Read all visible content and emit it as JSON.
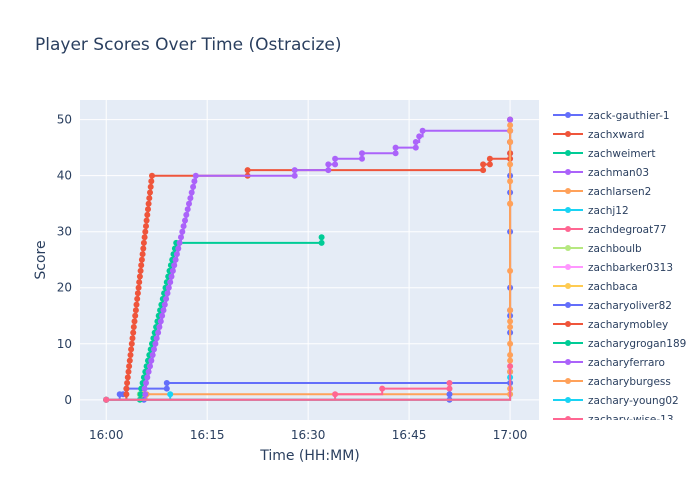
{
  "chart_data": {
    "type": "line",
    "title": "Player Scores Over Time (Ostracize)",
    "xlabel": "Time (HH:MM)",
    "ylabel": "Score",
    "x_tick_labels": [
      "16:00",
      "16:15",
      "16:30",
      "16:45",
      "17:00"
    ],
    "x_tick_minutes": [
      0,
      15,
      30,
      45,
      60
    ],
    "y_ticks": [
      0,
      10,
      20,
      30,
      40,
      50
    ],
    "xlim_minutes": [
      -3.9,
      64.3
    ],
    "ylim": [
      -3.6,
      53.5
    ],
    "grid": true,
    "legend_position": "right",
    "series": [
      {
        "name": "zack-gauthier-1",
        "color": "#636efa",
        "points": [
          [
            0,
            0
          ],
          [
            2,
            1
          ],
          [
            2.5,
            1
          ],
          [
            3,
            2
          ],
          [
            9,
            2
          ],
          [
            9,
            3
          ],
          [
            60,
            3
          ],
          [
            60,
            5
          ],
          [
            60,
            12
          ],
          [
            60,
            15
          ],
          [
            60,
            16
          ],
          [
            60,
            20
          ],
          [
            60,
            30
          ],
          [
            60,
            37
          ],
          [
            60,
            40
          ],
          [
            60,
            44
          ],
          [
            60,
            46
          ],
          [
            60,
            50
          ]
        ]
      },
      {
        "name": "zachxward",
        "color": "#ef553b",
        "points": [
          [
            0,
            0
          ],
          [
            3,
            2
          ],
          [
            3.1,
            3
          ],
          [
            3.2,
            4
          ],
          [
            3.3,
            5
          ],
          [
            3.4,
            6
          ],
          [
            3.5,
            7
          ],
          [
            3.6,
            8
          ],
          [
            3.7,
            9
          ],
          [
            3.8,
            10
          ],
          [
            3.9,
            11
          ],
          [
            4.0,
            12
          ],
          [
            4.1,
            13
          ],
          [
            4.2,
            14
          ],
          [
            4.3,
            15
          ],
          [
            4.4,
            16
          ],
          [
            4.5,
            17
          ],
          [
            4.6,
            18
          ],
          [
            4.7,
            19
          ],
          [
            4.8,
            20
          ],
          [
            4.9,
            21
          ],
          [
            5.0,
            22
          ],
          [
            5.1,
            23
          ],
          [
            5.2,
            24
          ],
          [
            5.3,
            25
          ],
          [
            5.4,
            26
          ],
          [
            5.5,
            27
          ],
          [
            5.6,
            28
          ],
          [
            5.7,
            29
          ],
          [
            5.8,
            30
          ],
          [
            5.9,
            31
          ],
          [
            6.0,
            32
          ],
          [
            6.1,
            33
          ],
          [
            6.2,
            34
          ],
          [
            6.3,
            35
          ],
          [
            6.4,
            36
          ],
          [
            6.5,
            37
          ],
          [
            6.6,
            38
          ],
          [
            6.7,
            39
          ],
          [
            6.8,
            40
          ],
          [
            21,
            40
          ],
          [
            21,
            41
          ],
          [
            56,
            41
          ],
          [
            56,
            42
          ],
          [
            57,
            42
          ],
          [
            57,
            43
          ],
          [
            60,
            43
          ],
          [
            60,
            44
          ],
          [
            60,
            46
          ],
          [
            60,
            48
          ],
          [
            60,
            50
          ]
        ]
      },
      {
        "name": "zachweimert",
        "color": "#00cc96",
        "points": [
          [
            0,
            0
          ],
          [
            5,
            1
          ],
          [
            5.2,
            2
          ],
          [
            5.4,
            3
          ],
          [
            5.6,
            4
          ],
          [
            5.8,
            5
          ],
          [
            6.0,
            6
          ],
          [
            6.2,
            7
          ],
          [
            6.4,
            8
          ],
          [
            6.6,
            9
          ],
          [
            6.8,
            10
          ],
          [
            7.0,
            11
          ],
          [
            7.2,
            12
          ],
          [
            7.4,
            13
          ],
          [
            7.6,
            14
          ],
          [
            7.8,
            15
          ],
          [
            8.0,
            16
          ],
          [
            8.2,
            17
          ],
          [
            8.4,
            18
          ],
          [
            8.6,
            19
          ],
          [
            8.8,
            20
          ],
          [
            9.0,
            21
          ],
          [
            9.2,
            22
          ],
          [
            9.4,
            23
          ],
          [
            9.6,
            24
          ],
          [
            9.8,
            25
          ],
          [
            10.0,
            26
          ],
          [
            10.2,
            27
          ],
          [
            10.4,
            28
          ],
          [
            32,
            28
          ],
          [
            32,
            29
          ]
        ]
      },
      {
        "name": "zachman03",
        "color": "#ab63fa",
        "points": [
          [
            0,
            0
          ],
          [
            5.5,
            1
          ],
          [
            5.7,
            2
          ],
          [
            5.9,
            3
          ],
          [
            6.1,
            4
          ],
          [
            6.3,
            5
          ],
          [
            6.5,
            6
          ],
          [
            6.7,
            7
          ],
          [
            6.9,
            8
          ],
          [
            7.1,
            9
          ],
          [
            7.3,
            10
          ],
          [
            7.5,
            11
          ],
          [
            7.7,
            12
          ],
          [
            7.9,
            13
          ],
          [
            8.1,
            14
          ],
          [
            8.3,
            15
          ],
          [
            8.5,
            16
          ],
          [
            8.7,
            17
          ],
          [
            8.9,
            18
          ],
          [
            9.1,
            19
          ],
          [
            9.3,
            20
          ],
          [
            9.5,
            21
          ],
          [
            9.7,
            22
          ],
          [
            9.9,
            23
          ],
          [
            10.1,
            24
          ],
          [
            10.3,
            25
          ],
          [
            10.5,
            26
          ],
          [
            10.7,
            27
          ],
          [
            10.9,
            28
          ],
          [
            11.1,
            29
          ],
          [
            11.3,
            30
          ],
          [
            11.5,
            31
          ],
          [
            11.7,
            32
          ],
          [
            11.9,
            33
          ],
          [
            12.1,
            34
          ],
          [
            12.3,
            35
          ],
          [
            12.5,
            36
          ],
          [
            12.7,
            37
          ],
          [
            12.9,
            38
          ],
          [
            13.1,
            39
          ],
          [
            13.3,
            40
          ],
          [
            28,
            40
          ],
          [
            28,
            41
          ],
          [
            33,
            41
          ],
          [
            33,
            42
          ],
          [
            34,
            42
          ],
          [
            34,
            43
          ],
          [
            38,
            43
          ],
          [
            38,
            44
          ],
          [
            43,
            44
          ],
          [
            43,
            45
          ],
          [
            46,
            45
          ],
          [
            46,
            46
          ],
          [
            46.5,
            47
          ],
          [
            47,
            48
          ],
          [
            60,
            48
          ],
          [
            60,
            50
          ]
        ]
      },
      {
        "name": "zachlarsen2",
        "color": "#ffa15a",
        "points": [
          [
            0,
            0
          ],
          [
            6,
            1
          ],
          [
            60,
            1
          ],
          [
            60,
            2
          ],
          [
            60,
            7
          ],
          [
            60,
            13
          ],
          [
            60,
            23
          ],
          [
            60,
            35
          ],
          [
            60,
            42
          ],
          [
            60,
            46
          ],
          [
            60,
            48
          ],
          [
            60,
            49
          ]
        ]
      },
      {
        "name": "zachj12",
        "color": "#19d3f3",
        "points": [
          [
            0,
            0
          ],
          [
            9.5,
            1
          ]
        ]
      },
      {
        "name": "zachdegroat77",
        "color": "#ff6692",
        "points": [
          [
            0,
            0
          ],
          [
            34,
            1
          ],
          [
            41,
            2
          ],
          [
            51,
            2
          ],
          [
            51,
            3
          ]
        ]
      },
      {
        "name": "zachboulb",
        "color": "#b6e880",
        "points": [
          [
            0,
            0
          ],
          [
            5,
            1
          ]
        ]
      },
      {
        "name": "zachbarker0313",
        "color": "#ff97ff",
        "points": [
          [
            0,
            0
          ],
          [
            5.2,
            1
          ]
        ]
      },
      {
        "name": "zachbaca",
        "color": "#fecb52",
        "points": [
          [
            0,
            0
          ],
          [
            5.4,
            1
          ]
        ]
      },
      {
        "name": "zacharyoliver82",
        "color": "#636efa",
        "points": [
          [
            0,
            0
          ],
          [
            5.6,
            0
          ],
          [
            51,
            0
          ],
          [
            51,
            1
          ]
        ]
      },
      {
        "name": "zacharymobley",
        "color": "#ef553b",
        "points": [
          [
            0,
            0
          ],
          [
            3,
            1
          ]
        ]
      },
      {
        "name": "zacharygrogan189",
        "color": "#00cc96",
        "points": [
          [
            0,
            0
          ],
          [
            5,
            0
          ],
          [
            5.1,
            1
          ]
        ]
      },
      {
        "name": "zacharyferraro",
        "color": "#ab63fa",
        "points": [
          [
            0,
            0
          ],
          [
            5.8,
            1
          ]
        ]
      },
      {
        "name": "zacharyburgess",
        "color": "#ffa15a",
        "points": [
          [
            0,
            0
          ],
          [
            60,
            5
          ],
          [
            60,
            8
          ],
          [
            60,
            10
          ],
          [
            60,
            14
          ],
          [
            60,
            16
          ],
          [
            60,
            35
          ],
          [
            60,
            39
          ]
        ]
      },
      {
        "name": "zachary-young02",
        "color": "#19d3f3",
        "points": [
          [
            0,
            0
          ],
          [
            60,
            4
          ]
        ]
      },
      {
        "name": "zachary-wise-13",
        "color": "#ff6692",
        "points": [
          [
            0,
            0
          ],
          [
            60,
            6
          ]
        ]
      }
    ]
  }
}
